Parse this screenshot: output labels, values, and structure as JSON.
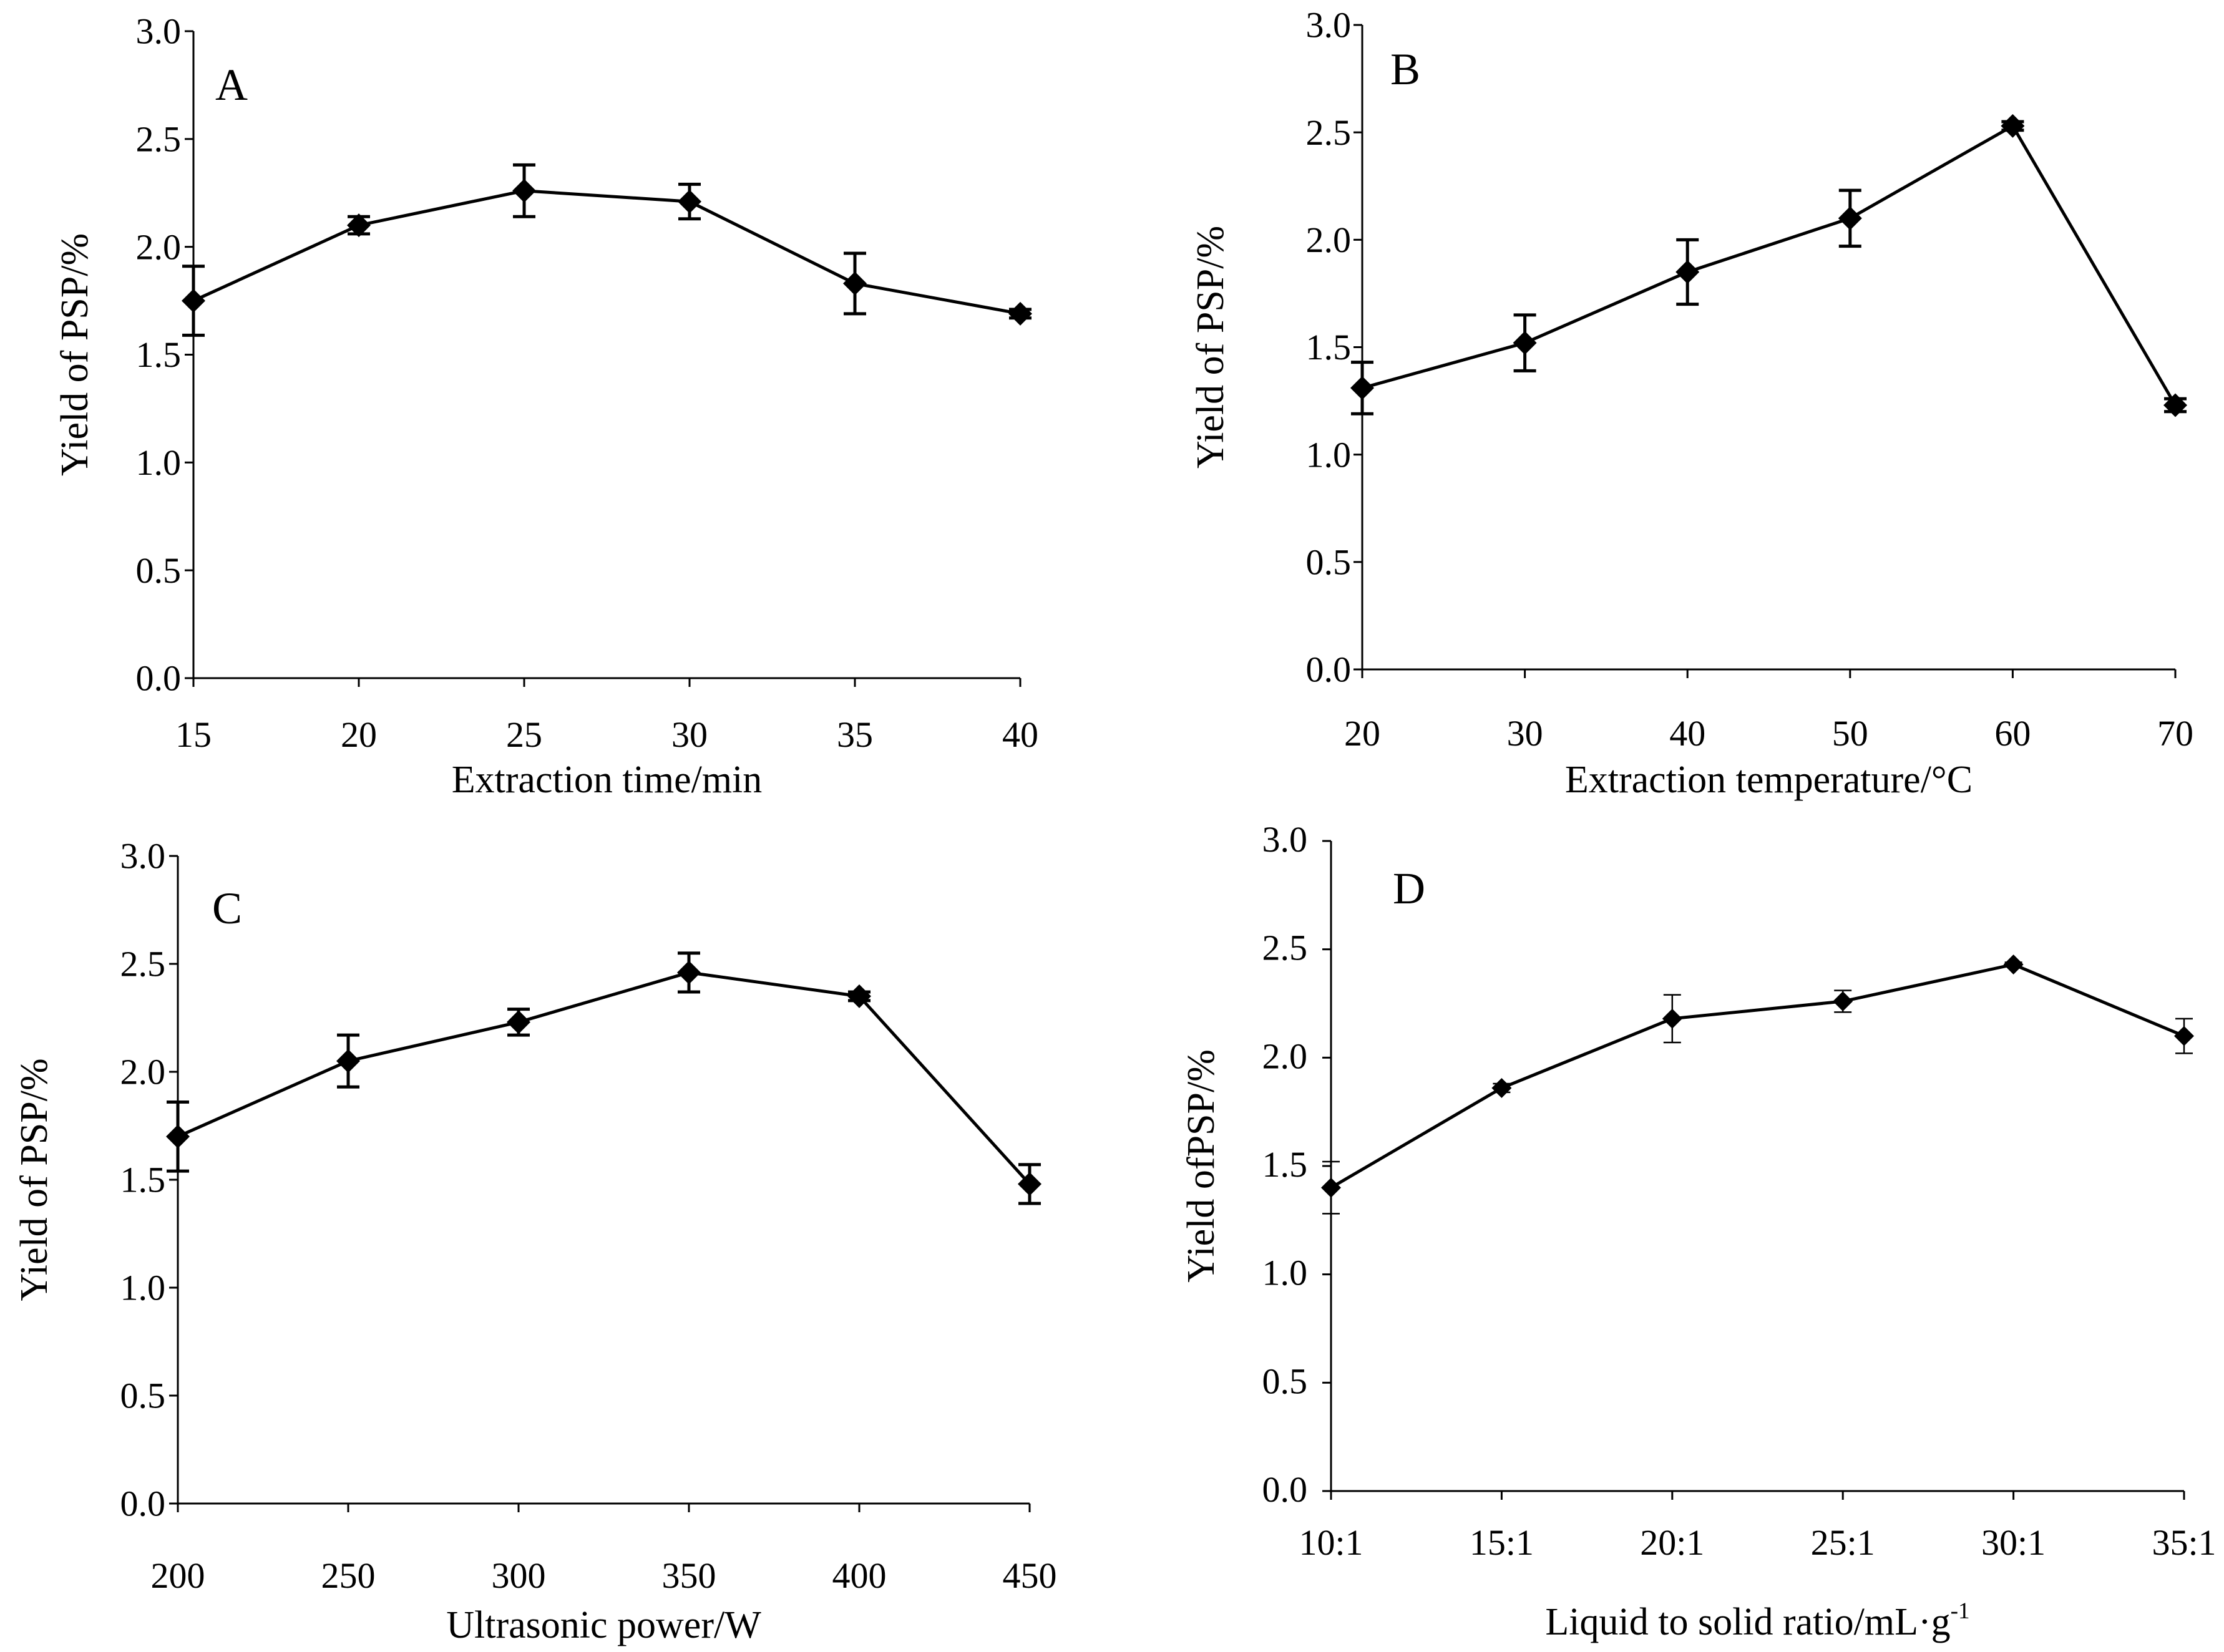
{
  "chart_data": [
    {
      "type": "line",
      "panel": "A",
      "title": "",
      "xlabel": "Extraction time/min",
      "ylabel": "Yield of PSP/%",
      "categories": [
        "15",
        "20",
        "25",
        "30",
        "35",
        "40"
      ],
      "values": [
        1.75,
        2.1,
        2.26,
        2.21,
        1.83,
        1.69
      ],
      "errors": [
        0.16,
        0.04,
        0.12,
        0.08,
        0.14,
        0.02
      ],
      "yticks": [
        "0.0",
        "0.5",
        "1.0",
        "1.5",
        "2.0",
        "2.5",
        "3.0"
      ],
      "ylim": [
        0,
        3.0
      ],
      "marker": "diamond",
      "color": "#000000"
    },
    {
      "type": "line",
      "panel": "B",
      "title": "",
      "xlabel": "Extraction temperature/°C",
      "ylabel": "Yield of PSP/%",
      "categories": [
        "20",
        "30",
        "40",
        "50",
        "60",
        "70"
      ],
      "values": [
        1.31,
        1.52,
        1.85,
        2.1,
        2.53,
        1.23
      ],
      "errors": [
        0.12,
        0.13,
        0.15,
        0.13,
        0.02,
        0.03
      ],
      "yticks": [
        "0.0",
        "0.5",
        "1.0",
        "1.5",
        "2.0",
        "2.5",
        "3.0"
      ],
      "ylim": [
        0,
        3.0
      ],
      "marker": "diamond",
      "color": "#000000"
    },
    {
      "type": "line",
      "panel": "C",
      "title": "",
      "xlabel": "Ultrasonic power/W",
      "ylabel": "Yield of PSP/%",
      "categories": [
        "200",
        "250",
        "300",
        "350",
        "400",
        "450"
      ],
      "values": [
        1.7,
        2.05,
        2.23,
        2.46,
        2.35,
        1.48
      ],
      "errors": [
        0.16,
        0.12,
        0.06,
        0.09,
        0.02,
        0.09
      ],
      "yticks": [
        "0.0",
        "0.5",
        "1.0",
        "1.5",
        "2.0",
        "2.5",
        "3.0"
      ],
      "ylim": [
        0,
        3.0
      ],
      "marker": "diamond",
      "color": "#000000"
    },
    {
      "type": "line",
      "panel": "D",
      "title": "",
      "xlabel": "Liquid to solid ratio/mL·g",
      "xlabel_superscript": "-1",
      "ylabel": "Yield ofPSP/%",
      "categories": [
        "10:1",
        "15:1",
        "20:1",
        "25:1",
        "30:1",
        "35:1"
      ],
      "values": [
        1.4,
        1.86,
        2.18,
        2.26,
        2.43,
        2.1
      ],
      "errors": [
        0.12,
        0.02,
        0.11,
        0.05,
        0.01,
        0.08
      ],
      "yticks": [
        "0.0",
        "0.5",
        "1.0",
        "1.5",
        "2.0",
        "2.5",
        "3.0"
      ],
      "ylim": [
        0,
        3.0
      ],
      "marker": "diamond",
      "color": "#000000"
    }
  ]
}
